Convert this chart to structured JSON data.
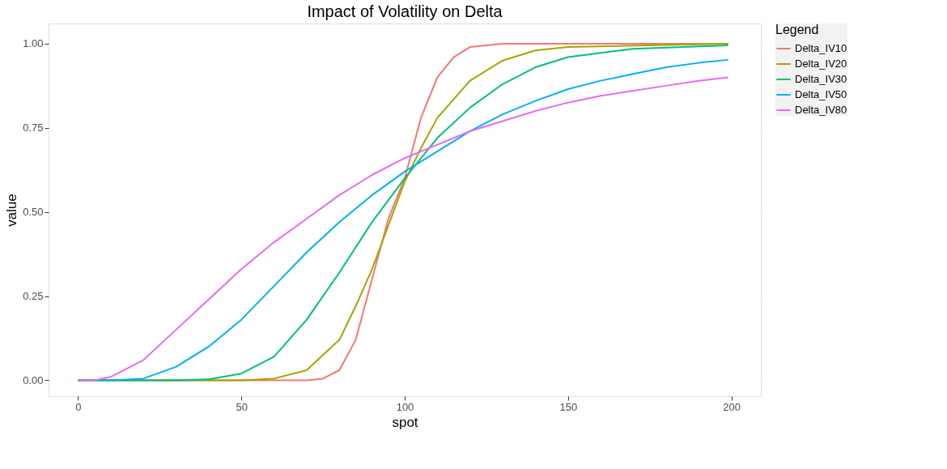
{
  "chart_data": {
    "type": "line",
    "title": "Impact of Volatility on Delta",
    "xlabel": "spot",
    "ylabel": "value",
    "legend_title": "Legend",
    "xlim": [
      -9,
      209
    ],
    "xticks": [
      0,
      50,
      100,
      150,
      200
    ],
    "ylim": [
      -0.047,
      1.06
    ],
    "yticks": [
      {
        "value": 0,
        "label": "0.00"
      },
      {
        "value": 0.25,
        "label": "0.25"
      },
      {
        "value": 0.5,
        "label": "0.50"
      },
      {
        "value": 0.75,
        "label": "0.75"
      },
      {
        "value": 1,
        "label": "1.00"
      }
    ],
    "grid": true,
    "legend": "right",
    "marker": "none",
    "line_style": "solid",
    "series": [
      {
        "name": "Delta_IV10",
        "color": "#f8766d",
        "x": [
          0,
          50,
          70,
          75,
          80,
          85,
          90,
          95,
          100,
          105,
          110,
          115,
          120,
          130,
          150,
          199
        ],
        "values": [
          0,
          0,
          0,
          0.005,
          0.03,
          0.12,
          0.3,
          0.48,
          0.6,
          0.78,
          0.9,
          0.96,
          0.99,
          1.0,
          1.0,
          1.0
        ]
      },
      {
        "name": "Delta_IV20",
        "color": "#a3a500",
        "x": [
          0,
          50,
          60,
          70,
          80,
          85,
          90,
          95,
          100,
          105,
          110,
          120,
          130,
          140,
          150,
          199
        ],
        "values": [
          0,
          0,
          0.005,
          0.03,
          0.12,
          0.22,
          0.33,
          0.46,
          0.59,
          0.69,
          0.78,
          0.89,
          0.95,
          0.98,
          0.99,
          1.0
        ]
      },
      {
        "name": "Delta_IV30",
        "color": "#00bf7d",
        "x": [
          0,
          30,
          40,
          50,
          60,
          70,
          80,
          90,
          100,
          110,
          120,
          130,
          140,
          150,
          170,
          199
        ],
        "values": [
          0,
          0,
          0.003,
          0.02,
          0.07,
          0.18,
          0.32,
          0.47,
          0.6,
          0.72,
          0.81,
          0.88,
          0.93,
          0.96,
          0.985,
          0.995
        ]
      },
      {
        "name": "Delta_IV50",
        "color": "#00b0f6",
        "x": [
          0,
          10,
          20,
          30,
          40,
          50,
          60,
          70,
          80,
          90,
          100,
          110,
          120,
          130,
          140,
          150,
          160,
          170,
          180,
          190,
          199
        ],
        "values": [
          0,
          0,
          0.005,
          0.04,
          0.1,
          0.18,
          0.28,
          0.38,
          0.47,
          0.55,
          0.62,
          0.68,
          0.74,
          0.79,
          0.83,
          0.865,
          0.89,
          0.91,
          0.93,
          0.943,
          0.952
        ]
      },
      {
        "name": "Delta_IV80",
        "color": "#e76bf3",
        "x": [
          0,
          5,
          10,
          20,
          30,
          40,
          50,
          60,
          70,
          80,
          90,
          100,
          110,
          120,
          130,
          140,
          150,
          160,
          170,
          180,
          190,
          199
        ],
        "values": [
          0,
          0,
          0.01,
          0.06,
          0.15,
          0.24,
          0.33,
          0.41,
          0.48,
          0.55,
          0.61,
          0.66,
          0.7,
          0.74,
          0.77,
          0.8,
          0.825,
          0.845,
          0.86,
          0.875,
          0.89,
          0.9
        ]
      }
    ]
  }
}
